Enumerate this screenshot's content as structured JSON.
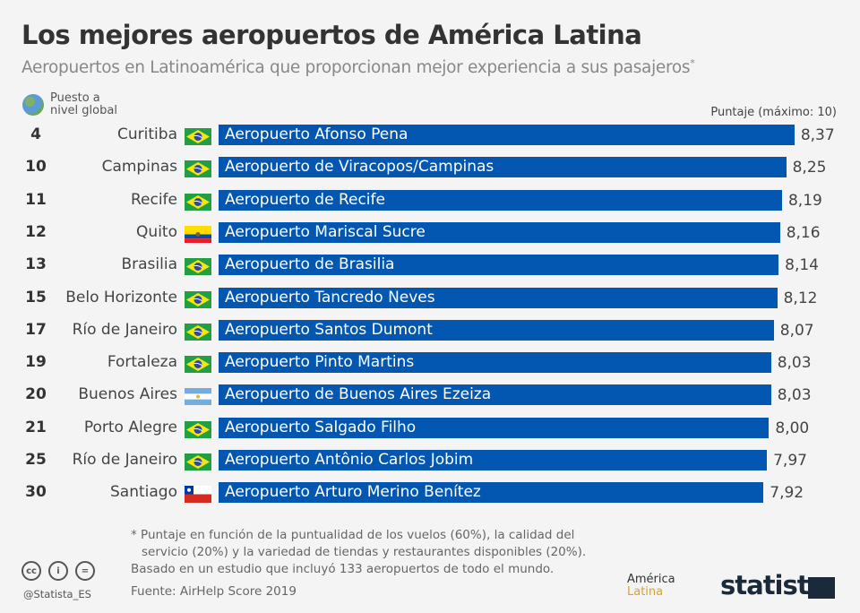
{
  "title": "Los mejores aeropuertos de América Latina",
  "subtitle": "Aeropuertos en Latinoamérica que proporcionan mejor experiencia a sus pasajeros",
  "subtitle_mark": "*",
  "rank_header_line1": "Puesto a",
  "rank_header_line2": "nivel global",
  "score_header": "Puntaje (máximo: 10)",
  "colors": {
    "bar": "#0457b0",
    "background": "#f4f4f4"
  },
  "chart_data": {
    "type": "bar",
    "orientation": "horizontal",
    "xlim": [
      0,
      10
    ],
    "rows": [
      {
        "rank": "4",
        "city": "Curitiba",
        "country": "brazil",
        "airport": "Aeropuerto Afonso Pena",
        "value": 8.37,
        "label": "8,37"
      },
      {
        "rank": "10",
        "city": "Campinas",
        "country": "brazil",
        "airport": "Aeropuerto de Viracopos/Campinas",
        "value": 8.25,
        "label": "8,25"
      },
      {
        "rank": "11",
        "city": "Recife",
        "country": "brazil",
        "airport": "Aeropuerto de Recife",
        "value": 8.19,
        "label": "8,19"
      },
      {
        "rank": "12",
        "city": "Quito",
        "country": "ecuador",
        "airport": "Aeropuerto Mariscal Sucre",
        "value": 8.16,
        "label": "8,16"
      },
      {
        "rank": "13",
        "city": "Brasilia",
        "country": "brazil",
        "airport": "Aeropuerto de Brasilia",
        "value": 8.14,
        "label": "8,14"
      },
      {
        "rank": "15",
        "city": "Belo Horizonte",
        "country": "brazil",
        "airport": "Aeropuerto Tancredo Neves",
        "value": 8.12,
        "label": "8,12"
      },
      {
        "rank": "17",
        "city": "Río de Janeiro",
        "country": "brazil",
        "airport": "Aeropuerto Santos Dumont",
        "value": 8.07,
        "label": "8,07"
      },
      {
        "rank": "19",
        "city": "Fortaleza",
        "country": "brazil",
        "airport": "Aeropuerto Pinto Martins",
        "value": 8.03,
        "label": "8,03"
      },
      {
        "rank": "20",
        "city": "Buenos Aires",
        "country": "argentina",
        "airport": "Aeropuerto de Buenos Aires Ezeiza",
        "value": 8.03,
        "label": "8,03"
      },
      {
        "rank": "21",
        "city": "Porto Alegre",
        "country": "brazil",
        "airport": "Aeropuerto Salgado Filho",
        "value": 8.0,
        "label": "8,00"
      },
      {
        "rank": "25",
        "city": "Río de Janeiro",
        "country": "brazil",
        "airport": "Aeropuerto Antônio Carlos Jobim",
        "value": 7.97,
        "label": "7,97"
      },
      {
        "rank": "30",
        "city": "Santiago",
        "country": "chile",
        "airport": "Aeropuerto Arturo Merino Benítez",
        "value": 7.92,
        "label": "7,92"
      }
    ]
  },
  "notes": {
    "line1": "* Puntaje  en función de la puntualidad de los vuelos (60%), la calidad del",
    "line2": "servicio (20%) y la variedad de tiendas y restaurantes disponibles (20%).",
    "line3": "Basado en un estudio que incluyó 133 aeropuertos de todo el mundo."
  },
  "source": "Fuente: AirHelp Score 2019",
  "handle": "@Statista_ES",
  "license_icons": [
    "cc",
    "by",
    "nd"
  ],
  "logo_america_1": "América",
  "logo_america_2": "Latina",
  "logo_statista": "statista"
}
